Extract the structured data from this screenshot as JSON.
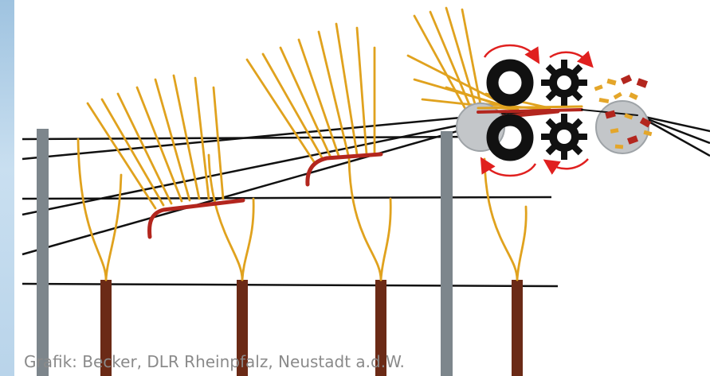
{
  "figure": {
    "credit": "Grafik: Becker, DLR Rheinpfalz, Neustadt a.d.W."
  },
  "colors": {
    "background": "#ffffff",
    "left_strip": "#b9d4ea",
    "wire": "#111111",
    "post": "#7d868c",
    "cane": "#e0a21e",
    "cordon": "#b3261e",
    "trunk": "#6b2a16",
    "roller": "#111111",
    "gear": "#111111",
    "drum": "#c3c6c9",
    "arrow": "#e0201f",
    "chip_light": "#e4a62a",
    "chip_dark": "#b3261e",
    "credit_text": "#8a8a8a"
  },
  "icons": [
    "roller-icon",
    "gear-icon",
    "drum-icon",
    "rotation-arrow-icon"
  ]
}
